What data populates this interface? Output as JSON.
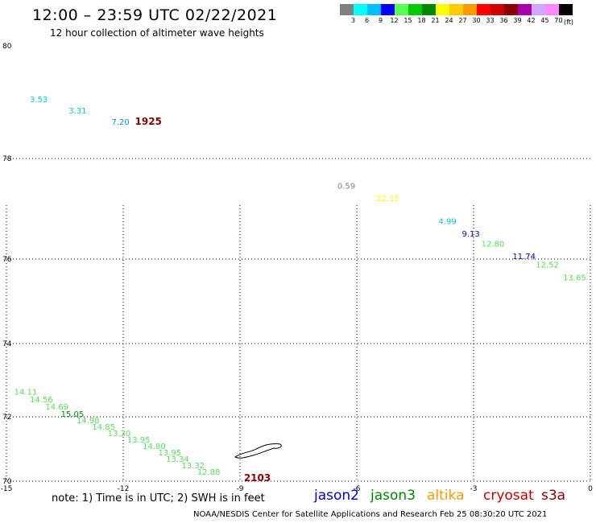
{
  "header": {
    "title": "12:00 – 23:59 UTC 02/22/2021",
    "subtitle": "12 hour collection of altimeter wave heights"
  },
  "colorbar": {
    "colors": [
      "#808080",
      "#00ffff",
      "#00bfff",
      "#0000ff",
      "#55ff55",
      "#00cc00",
      "#008800",
      "#ffff00",
      "#ffcc00",
      "#ff9900",
      "#ff0000",
      "#cc0000",
      "#880000",
      "#aa00aa",
      "#ccaaff",
      "#ff88ff",
      "#000000"
    ],
    "labels": [
      "3",
      "6",
      "9",
      "12",
      "15",
      "18",
      "21",
      "24",
      "27",
      "30",
      "33",
      "36",
      "39",
      "42",
      "45",
      "70"
    ],
    "unit": "(ft)"
  },
  "map": {
    "lon_range": [
      -15,
      0
    ],
    "lat_range": [
      70,
      80
    ],
    "lon_ticks": [
      {
        "lon": -15,
        "label": "-15"
      },
      {
        "lon": -12,
        "label": "-12"
      },
      {
        "lon": -9,
        "label": "-9"
      },
      {
        "lon": -6,
        "label": "-6"
      },
      {
        "lon": -3,
        "label": "-3"
      },
      {
        "lon": 0,
        "label": "0"
      }
    ],
    "lat_ticks": [
      {
        "lat": 80,
        "label": "80"
      },
      {
        "lat": 78,
        "label": "78"
      },
      {
        "lat": 76,
        "label": "76"
      },
      {
        "lat": 74,
        "label": "74"
      },
      {
        "lat": 72,
        "label": "72"
      },
      {
        "lat": 70,
        "label": "70"
      }
    ],
    "gridlines": true,
    "observations": [
      {
        "lon": -14.4,
        "lat": 79.0,
        "value": "3.53",
        "color": "#00cccc"
      },
      {
        "lon": -13.4,
        "lat": 78.8,
        "value": "3.31",
        "color": "#00cccc"
      },
      {
        "lon": -12.3,
        "lat": 78.6,
        "value": "7.20",
        "color": "#0099cc"
      },
      {
        "lon": -6.5,
        "lat": 77.4,
        "value": "0.59",
        "color": "#808080"
      },
      {
        "lon": -5.5,
        "lat": 77.15,
        "value": "22.15",
        "color": "#ffff00"
      },
      {
        "lon": -3.9,
        "lat": 76.7,
        "value": "4.99",
        "color": "#00cccc"
      },
      {
        "lon": -3.3,
        "lat": 76.45,
        "value": "9.13",
        "color": "#0000cc"
      },
      {
        "lon": -2.8,
        "lat": 76.25,
        "value": "12.80",
        "color": "#55dd55"
      },
      {
        "lon": -2.0,
        "lat": 76.0,
        "value": "11.74",
        "color": "#0000cc"
      },
      {
        "lon": -1.4,
        "lat": 75.8,
        "value": "12.52",
        "color": "#55dd55"
      },
      {
        "lon": -0.7,
        "lat": 75.5,
        "value": "13.65",
        "color": "#55dd55"
      },
      {
        "lon": -14.8,
        "lat": 72.6,
        "value": "14.11",
        "color": "#55dd55"
      },
      {
        "lon": -14.4,
        "lat": 72.4,
        "value": "14.56",
        "color": "#55dd55"
      },
      {
        "lon": -14.0,
        "lat": 72.2,
        "value": "14.69",
        "color": "#55dd55"
      },
      {
        "lon": -13.6,
        "lat": 72.0,
        "value": "15.05",
        "color": "#008800"
      },
      {
        "lon": -13.2,
        "lat": 71.8,
        "value": "14.98",
        "color": "#55dd55"
      },
      {
        "lon": -12.8,
        "lat": 71.6,
        "value": "14.85",
        "color": "#55dd55"
      },
      {
        "lon": -12.4,
        "lat": 71.4,
        "value": "13.30",
        "color": "#55dd55"
      },
      {
        "lon": -11.9,
        "lat": 71.2,
        "value": "13.95",
        "color": "#55dd55"
      },
      {
        "lon": -11.5,
        "lat": 71.0,
        "value": "14.80",
        "color": "#55dd55"
      },
      {
        "lon": -11.1,
        "lat": 70.8,
        "value": "13.95",
        "color": "#55dd55"
      },
      {
        "lon": -10.9,
        "lat": 70.6,
        "value": "13.34",
        "color": "#55dd55"
      },
      {
        "lon": -10.5,
        "lat": 70.4,
        "value": "13.32",
        "color": "#55dd55"
      },
      {
        "lon": -10.1,
        "lat": 70.2,
        "value": "12.88",
        "color": "#55dd55"
      }
    ],
    "time_labels": [
      {
        "lon": -11.7,
        "lat": 78.6,
        "text": "1925",
        "color": "#880000"
      },
      {
        "lon": -8.9,
        "lat": 70.0,
        "text": "2103",
        "color": "#880000"
      }
    ]
  },
  "satellites": [
    {
      "name": "jason2",
      "color": "#0000cc"
    },
    {
      "name": "jason3",
      "color": "#008800"
    },
    {
      "name": "altika",
      "color": "#ff9900"
    },
    {
      "name": "cryosat",
      "color": "#cc0000"
    },
    {
      "name": "s3a",
      "color": "#880000"
    }
  ],
  "note": "note: 1) Time is in UTC; 2) SWH is in feet",
  "footer": "NOAA/NESDIS Center for Satellite Applications and Research    Feb 25 08:30:20 UTC 2021"
}
